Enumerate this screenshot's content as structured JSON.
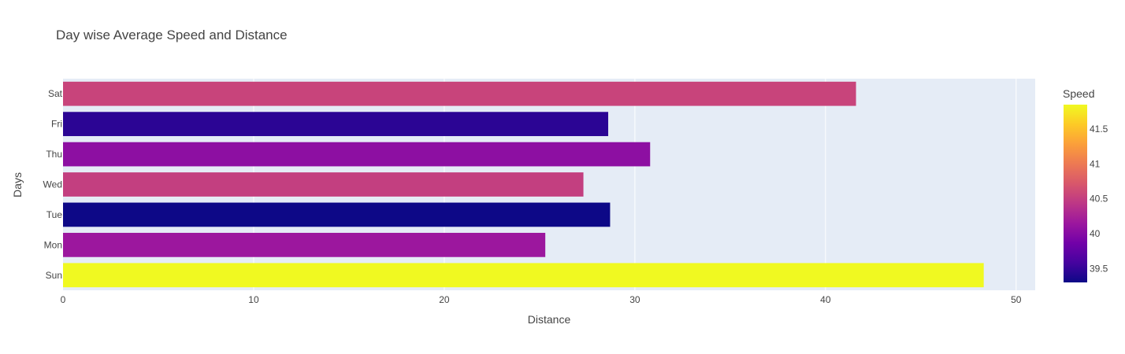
{
  "chart_data": {
    "type": "bar",
    "orientation": "horizontal",
    "title": "Day wise Average Speed and Distance",
    "xlabel": "Distance",
    "ylabel": "Days",
    "xlim": [
      0,
      51
    ],
    "x_ticks": [
      0,
      10,
      20,
      30,
      40,
      50
    ],
    "categories": [
      "Sun",
      "Mon",
      "Tue",
      "Wed",
      "Thu",
      "Fri",
      "Sat"
    ],
    "values": [
      48.3,
      25.3,
      28.7,
      27.3,
      30.8,
      28.6,
      41.6
    ],
    "speed": [
      41.85,
      40.15,
      39.3,
      40.5,
      40.05,
      39.45,
      40.55
    ],
    "grid": true,
    "colorbar": {
      "title": "Speed",
      "range": [
        39.3,
        41.85
      ],
      "ticks": [
        39.5,
        40,
        40.5,
        41,
        41.5
      ],
      "colorscale": [
        "#0d0887",
        "#46039f",
        "#7201a8",
        "#9c179e",
        "#bd3786",
        "#d8576b",
        "#ed7953",
        "#fb9f3a",
        "#fdca26",
        "#f0f921"
      ]
    },
    "plot_background": "#e5ecf6"
  }
}
